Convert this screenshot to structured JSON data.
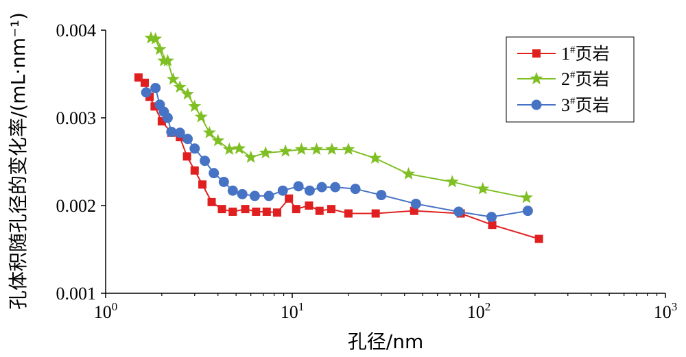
{
  "chart_data": {
    "type": "line",
    "xscale": "log",
    "xlim": [
      1,
      1000
    ],
    "ylim": [
      0.001,
      0.004
    ],
    "xticks": [
      {
        "value": 1,
        "base": "10",
        "exp": "0"
      },
      {
        "value": 10,
        "base": "10",
        "exp": "1"
      },
      {
        "value": 100,
        "base": "10",
        "exp": "2"
      },
      {
        "value": 1000,
        "base": "10",
        "exp": "3"
      }
    ],
    "yticks": [
      {
        "value": 0.001,
        "label": "0.001"
      },
      {
        "value": 0.002,
        "label": "0.002"
      },
      {
        "value": 0.003,
        "label": "0.003"
      },
      {
        "value": 0.004,
        "label": "0.004"
      }
    ],
    "xlabel": "孔径/nm",
    "ylabel": "孔体积随孔径的变化率/(mL·nm⁻¹)",
    "grid": false,
    "legend_position": "top-right",
    "series": [
      {
        "name": "1#页岩",
        "legend_main": "1",
        "legend_sup": "#",
        "legend_suffix": "页岩",
        "color": "#e02020",
        "marker": "square",
        "x": [
          1.5,
          1.62,
          1.72,
          1.83,
          2.0,
          2.25,
          2.5,
          2.73,
          3.0,
          3.3,
          3.7,
          4.2,
          4.8,
          5.6,
          6.4,
          7.3,
          8.3,
          9.6,
          10.5,
          12.3,
          14.0,
          16.2,
          20.0,
          28.0,
          45.0,
          80.0,
          118.0,
          210.0
        ],
        "y": [
          0.00346,
          0.0034,
          0.00324,
          0.00313,
          0.00296,
          0.00283,
          0.00278,
          0.00256,
          0.0024,
          0.00224,
          0.00204,
          0.00196,
          0.00193,
          0.00196,
          0.00193,
          0.00193,
          0.00192,
          0.00208,
          0.00196,
          0.002,
          0.00194,
          0.00196,
          0.00191,
          0.00191,
          0.00194,
          0.00191,
          0.00178,
          0.00162
        ]
      },
      {
        "name": "2#页岩",
        "legend_main": "2",
        "legend_sup": "#",
        "legend_suffix": "页岩",
        "color": "#7fbf24",
        "marker": "star",
        "x": [
          1.75,
          1.85,
          1.95,
          2.05,
          2.15,
          2.3,
          2.5,
          2.75,
          3.0,
          3.25,
          3.6,
          4.0,
          4.6,
          5.2,
          6.0,
          7.2,
          9.2,
          11.2,
          13.5,
          16.3,
          20.0,
          27.8,
          42.0,
          72.0,
          105.0,
          180.0
        ],
        "y": [
          0.00391,
          0.0039,
          0.00378,
          0.00365,
          0.00365,
          0.00344,
          0.00335,
          0.00327,
          0.00313,
          0.00301,
          0.00283,
          0.00274,
          0.00264,
          0.00265,
          0.00255,
          0.0026,
          0.00262,
          0.00264,
          0.00264,
          0.00264,
          0.00264,
          0.00254,
          0.00236,
          0.00227,
          0.00219,
          0.00209
        ]
      },
      {
        "name": "3#页岩",
        "legend_main": "3",
        "legend_sup": "#",
        "legend_suffix": "页岩",
        "color": "#4673c4",
        "marker": "circle",
        "x": [
          1.65,
          1.85,
          1.95,
          2.05,
          2.15,
          2.25,
          2.5,
          2.75,
          3.0,
          3.4,
          3.8,
          4.3,
          4.8,
          5.4,
          6.3,
          7.5,
          8.9,
          10.8,
          12.4,
          14.4,
          17.0,
          21.8,
          30.0,
          46.0,
          78.0,
          117.0,
          183.0
        ],
        "y": [
          0.00329,
          0.00334,
          0.00315,
          0.00307,
          0.003,
          0.00284,
          0.00283,
          0.00276,
          0.00265,
          0.00251,
          0.00237,
          0.00227,
          0.00217,
          0.00213,
          0.00211,
          0.00211,
          0.00217,
          0.00222,
          0.00217,
          0.00221,
          0.00221,
          0.00219,
          0.00212,
          0.00202,
          0.00193,
          0.00187,
          0.00194
        ]
      }
    ]
  }
}
